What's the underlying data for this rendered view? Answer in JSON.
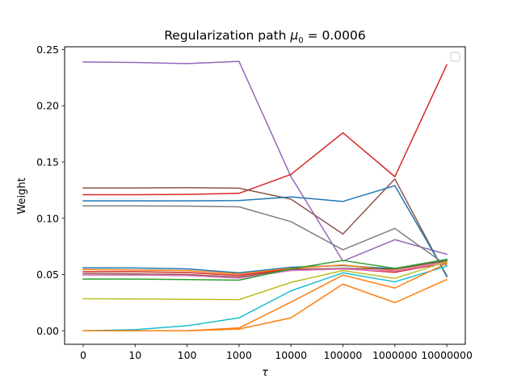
{
  "chart_data": {
    "type": "line",
    "title_prefix": "Regularization path ",
    "title_math": "μ",
    "title_sub": "0",
    "title_suffix": " = 0.0006",
    "xlabel": "τ",
    "ylabel": "Weight",
    "categories": [
      "0",
      "10",
      "100",
      "1000",
      "10000",
      "100000",
      "1000000",
      "10000000"
    ],
    "y_ticks": [
      "0.00",
      "0.05",
      "0.10",
      "0.15",
      "0.20",
      "0.25"
    ],
    "y_tick_values": [
      0,
      0.05,
      0.1,
      0.15,
      0.2,
      0.25
    ],
    "ylim": [
      -0.012,
      0.2525
    ],
    "grid": false,
    "legend": "upper right (empty)",
    "series": [
      {
        "color": "#9467bd",
        "values": [
          0.239,
          0.2385,
          0.2375,
          0.2395,
          0.137,
          0.062,
          0.081,
          0.068
        ]
      },
      {
        "color": "#d62728",
        "values": [
          0.121,
          0.121,
          0.1212,
          0.1222,
          0.139,
          0.176,
          0.137,
          0.2365
        ]
      },
      {
        "color": "#8c564b",
        "values": [
          0.127,
          0.127,
          0.1272,
          0.1268,
          0.117,
          0.086,
          0.135,
          0.048
        ]
      },
      {
        "color": "#1f77b4",
        "values": [
          0.1155,
          0.1155,
          0.1155,
          0.1158,
          0.119,
          0.115,
          0.129,
          0.049
        ]
      },
      {
        "color": "#7f7f7f",
        "values": [
          0.111,
          0.111,
          0.1108,
          0.1102,
          0.097,
          0.072,
          0.091,
          0.058
        ]
      },
      {
        "color": "#1f77b4",
        "values": [
          0.056,
          0.0558,
          0.055,
          0.0515,
          0.0565,
          0.058,
          0.055,
          0.063
        ]
      },
      {
        "color": "#ff7f0e",
        "values": [
          0.0545,
          0.054,
          0.0535,
          0.0505,
          0.0555,
          0.0585,
          0.0535,
          0.061
        ]
      },
      {
        "color": "#d62728",
        "values": [
          0.0525,
          0.0525,
          0.0518,
          0.0492,
          0.0548,
          0.0552,
          0.052,
          0.0605
        ]
      },
      {
        "color": "#8c564b",
        "values": [
          0.0508,
          0.0505,
          0.05,
          0.0478,
          0.0542,
          0.0555,
          0.0548,
          0.0622
        ]
      },
      {
        "color": "#e377c2",
        "values": [
          0.0495,
          0.0495,
          0.049,
          0.0468,
          0.0535,
          0.0548,
          0.053,
          0.061
        ]
      },
      {
        "color": "#2ca02c",
        "values": [
          0.046,
          0.046,
          0.0455,
          0.045,
          0.055,
          0.0625,
          0.0555,
          0.0635
        ]
      },
      {
        "color": "#bcbd22",
        "values": [
          0.0285,
          0.0283,
          0.028,
          0.0277,
          0.043,
          0.0535,
          0.0465,
          0.0615
        ]
      },
      {
        "color": "#17becf",
        "values": [
          0.0,
          0.001,
          0.0045,
          0.0115,
          0.0355,
          0.0515,
          0.0435,
          0.0575
        ]
      },
      {
        "color": "#ff7f0e",
        "values": [
          0.0,
          0.0,
          0.0,
          0.0025,
          0.0255,
          0.0495,
          0.038,
          0.06
        ]
      },
      {
        "color": "#ff7f0e",
        "values": [
          0.0,
          0.0,
          0.0,
          0.0015,
          0.0115,
          0.0415,
          0.025,
          0.0455
        ]
      }
    ]
  }
}
